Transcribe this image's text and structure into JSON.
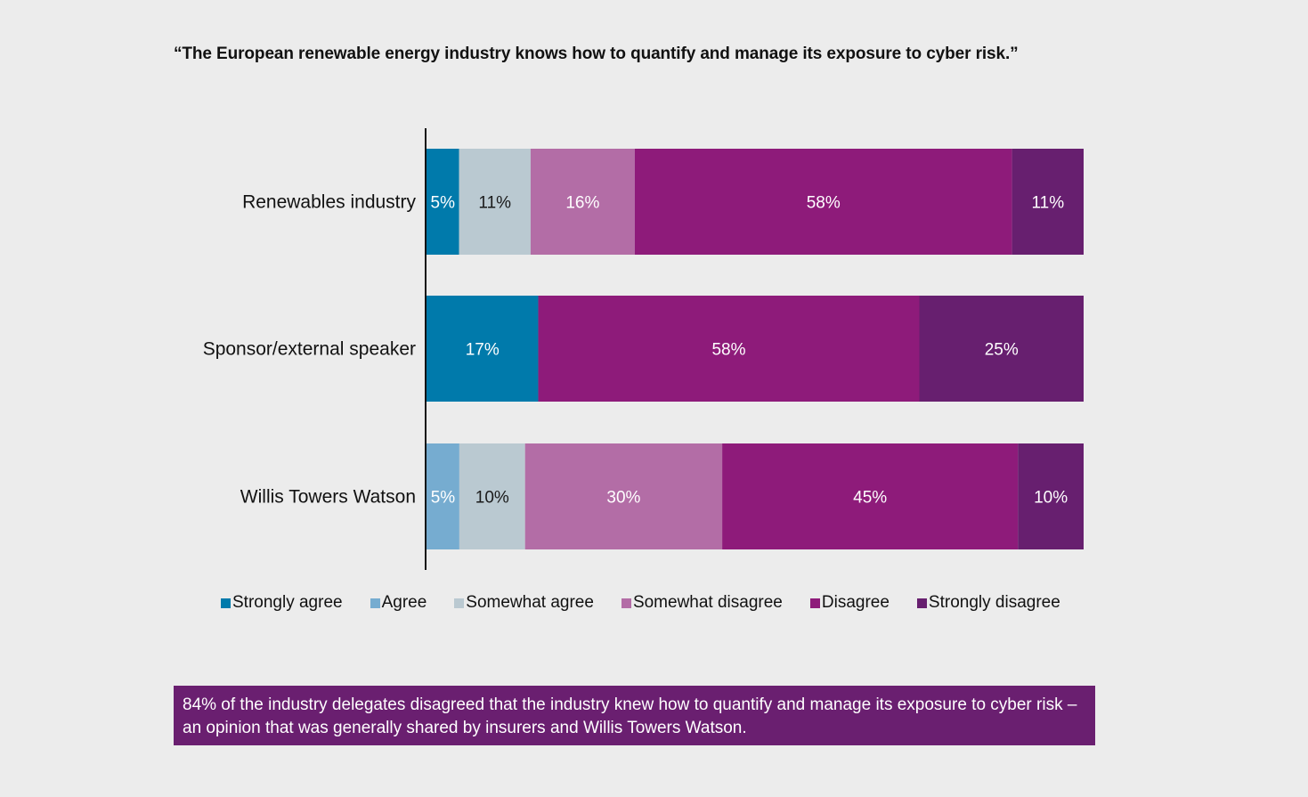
{
  "chart_data": {
    "type": "bar",
    "orientation": "horizontal",
    "stacked": true,
    "title": "“The European renewable energy industry knows how to quantify and manage its exposure to cyber risk.”",
    "categories": [
      "Renewables industry",
      "Sponsor/external speaker",
      "Willis Towers Watson"
    ],
    "series": [
      {
        "name": "Strongly agree",
        "color": "#007aab",
        "values": [
          5,
          17,
          0
        ],
        "labels": [
          "5%",
          "17%",
          ""
        ]
      },
      {
        "name": "Agree",
        "color": "#76acd0",
        "values": [
          0,
          0,
          5
        ],
        "labels": [
          "",
          "",
          "5%"
        ]
      },
      {
        "name": "Somewhat agree",
        "color": "#bac9d1",
        "values": [
          11,
          0,
          10
        ],
        "labels": [
          "11%",
          "",
          "10%"
        ]
      },
      {
        "name": "Somewhat disagree",
        "color": "#b36da6",
        "values": [
          16,
          0,
          30
        ],
        "labels": [
          "16%",
          "",
          "30%"
        ]
      },
      {
        "name": "Disagree",
        "color": "#8e1b7a",
        "values": [
          58,
          58,
          45
        ],
        "labels": [
          "58%",
          "58%",
          "45%"
        ]
      },
      {
        "name": "Strongly disagree",
        "color": "#671f6f",
        "values": [
          11,
          25,
          10
        ],
        "labels": [
          "11%",
          "25%",
          "10%"
        ]
      }
    ],
    "grid": false,
    "legend_position": "bottom"
  },
  "callout": {
    "text": "84% of the industry delegates disagreed that the industry knew how to quantify and manage its exposure to cyber risk – an opinion that was generally shared by insurers and Willis Towers Watson.",
    "background": "#6a1f70"
  }
}
